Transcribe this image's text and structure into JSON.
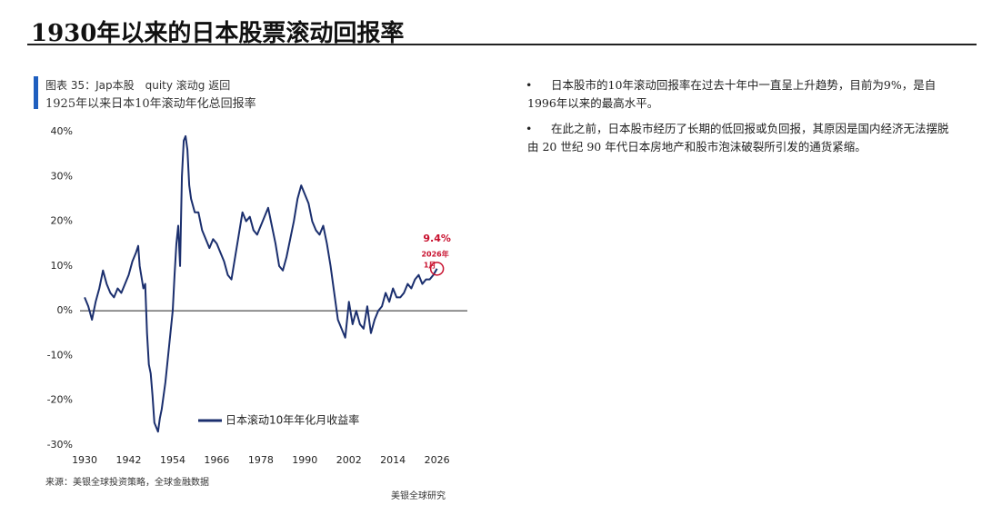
{
  "header": {
    "title": "1930年以来的日本股票滚动回报率"
  },
  "figure": {
    "caption": "图表 35：Jap本股　quity 滚动g 返回",
    "source": "来源：美银全球投资策略，全球金融数据",
    "brand": "美银全球研究"
  },
  "chart_data": {
    "type": "line",
    "subtitle": "1925年以来日本10年滚动年化总回报率",
    "x": [
      1930,
      1931,
      1932,
      1933,
      1934,
      1935,
      1936,
      1937,
      1938,
      1939,
      1940,
      1941,
      1942,
      1943,
      1944,
      1944.6,
      1945,
      1946,
      1946.5,
      1947,
      1947.5,
      1948,
      1948.5,
      1949,
      1950,
      1950.5,
      1951,
      1952,
      1952.5,
      1953,
      1954,
      1954.5,
      1955,
      1955.5,
      1956,
      1956.5,
      1957,
      1957.5,
      1958,
      1958.5,
      1959,
      1960,
      1961,
      1962,
      1963,
      1964,
      1965,
      1966,
      1967,
      1968,
      1969,
      1970,
      1971,
      1972,
      1973,
      1974,
      1975,
      1976,
      1977,
      1978,
      1979,
      1980,
      1981,
      1982,
      1983,
      1984,
      1985,
      1986,
      1987,
      1988,
      1989,
      1990,
      1991,
      1992,
      1993,
      1994,
      1995,
      1996,
      1997,
      1998,
      1999,
      2000,
      2001,
      2002,
      2003,
      2004,
      2005,
      2006,
      2007,
      2008,
      2009,
      2010,
      2011,
      2012,
      2013,
      2014,
      2015,
      2016,
      2017,
      2018,
      2019,
      2020,
      2021,
      2022,
      2023,
      2024,
      2025,
      2026
    ],
    "series": [
      {
        "name": "日本滚动10年年化月收益率",
        "color": "#1b2f6e",
        "values": [
          3,
          1,
          -2,
          2,
          5,
          9,
          6,
          4,
          3,
          5,
          4,
          6,
          8,
          11,
          13,
          14.5,
          10,
          5,
          6,
          -5,
          -12,
          -14,
          -19,
          -25,
          -27,
          -24,
          -22,
          -16,
          -12,
          -8,
          0,
          8,
          15,
          19,
          10,
          30,
          38,
          39,
          36,
          28,
          25,
          22,
          22,
          18,
          16,
          14,
          16,
          15,
          13,
          11,
          8,
          7,
          12,
          17,
          22,
          20,
          21,
          18,
          17,
          19,
          21,
          23,
          19,
          15,
          10,
          9,
          12,
          16,
          20,
          25,
          28,
          26,
          24,
          20,
          18,
          17,
          19,
          15,
          10,
          4,
          -2,
          -4,
          -6,
          2,
          -3,
          0,
          -3,
          -4,
          1,
          -5,
          -2,
          0,
          1,
          4,
          2,
          5,
          3,
          3,
          4,
          6,
          5,
          7,
          8,
          6,
          7,
          7,
          8,
          9.4
        ]
      }
    ],
    "xlim": [
      1928,
      2036
    ],
    "xticks": [
      1930,
      1942,
      1954,
      1966,
      1978,
      1990,
      2002,
      2014,
      2026
    ],
    "ylim": [
      -30,
      40
    ],
    "yticks": [
      {
        "value": -30,
        "label": "-30%"
      },
      {
        "value": -20,
        "label": "-20%"
      },
      {
        "value": -10,
        "label": "-10%"
      },
      {
        "value": 0,
        "label": "0%"
      },
      {
        "value": 10,
        "label": "10%"
      },
      {
        "value": 20,
        "label": "20%"
      },
      {
        "value": 30,
        "label": "30%"
      },
      {
        "value": 40,
        "label": "40%"
      }
    ],
    "grid": false,
    "annotations": [
      "9.4%",
      "2026年",
      "1月"
    ],
    "annotation_color": "#c8102e"
  },
  "bullets": [
    "日本股市的10年滚动回报率在过去十年中一直呈上升趋势，目前为9%，是自1996年以来的最高水平。",
    "在此之前，日本股市经历了长期的低回报或负回报，其原因是国内经济无法摆脱由 20 世纪 90 年代日本房地产和股市泡沫破裂所引发的通货紧缩。"
  ]
}
